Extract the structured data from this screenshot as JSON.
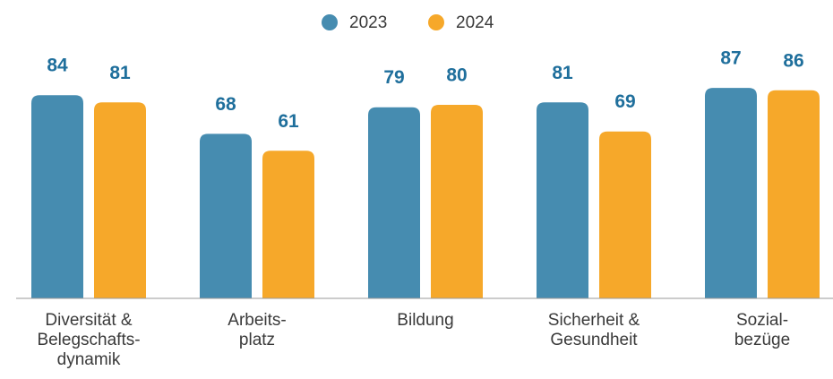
{
  "chart_data": {
    "type": "bar",
    "categories": [
      "Diversität &\nBelegschafts-\ndynamik",
      "Arbeits-\nplatz",
      "Bildung",
      "Sicherheit &\nGesundheit",
      "Sozial-\nbezüge"
    ],
    "series": [
      {
        "name": "2023",
        "color": "#468cb0",
        "values": [
          84,
          68,
          79,
          81,
          87
        ]
      },
      {
        "name": "2024",
        "color": "#f6a82a",
        "values": [
          81,
          61,
          80,
          69,
          86
        ]
      }
    ],
    "ylim": [
      0,
      100
    ],
    "legend": "top"
  }
}
